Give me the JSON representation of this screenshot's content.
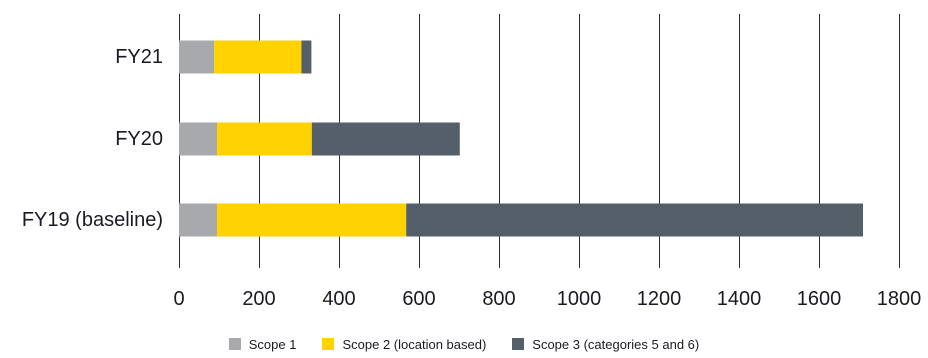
{
  "chart_data": {
    "type": "bar",
    "orientation": "horizontal",
    "stacked": true,
    "categories": [
      "FY21",
      "FY20",
      "FY19 (baseline)"
    ],
    "series": [
      {
        "name": "Scope 1",
        "color": "#a7a9ac",
        "values": [
          88,
          95,
          95
        ]
      },
      {
        "name": "Scope 2 (location based)",
        "color": "#ffd200",
        "values": [
          218,
          237,
          473
        ]
      },
      {
        "name": "Scope 3 (categories 5 and 6)",
        "color": "#555f69",
        "values": [
          25,
          370,
          1142
        ]
      }
    ],
    "xlim": [
      0,
      1800
    ],
    "xticks": [
      "0",
      "200",
      "400",
      "600",
      "800",
      "1000",
      "1200",
      "1400",
      "1600",
      "1800"
    ],
    "grid": "vertical",
    "legend": "bottom"
  }
}
